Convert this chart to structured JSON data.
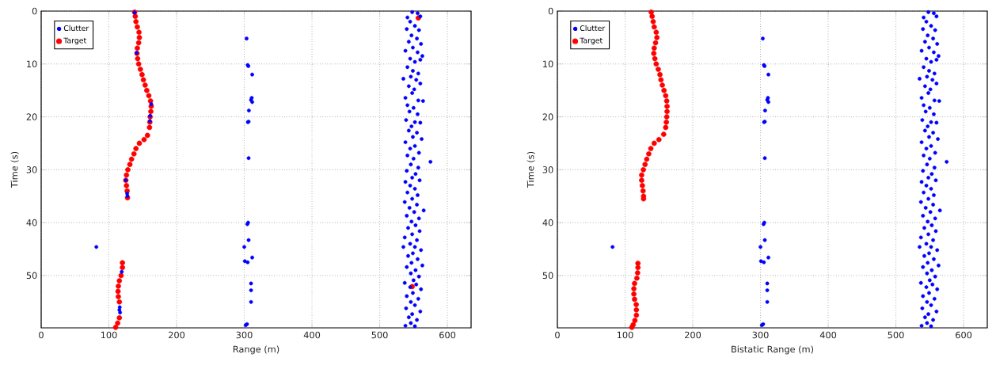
{
  "chart_data": [
    {
      "type": "scatter",
      "xlabel": "Range (m)",
      "ylabel": "Time (s)",
      "xlim": [
        0,
        635
      ],
      "ylim": [
        59.9,
        0
      ],
      "xticks": [
        0,
        100,
        200,
        300,
        400,
        500,
        600
      ],
      "yticks": [
        0,
        10,
        20,
        30,
        40,
        50
      ],
      "grid": true,
      "legend": "top left",
      "marker": "circle",
      "series": [
        {
          "name": "Clutter",
          "color": "#0000ff",
          "x": [
            81.5,
            303.4,
            305,
            306,
            311.7,
            311,
            311.7,
            310,
            306.8,
            305.3,
            306.4,
            306.4,
            305.7,
            304.5,
            306.4,
            300,
            311.7,
            300.8,
            305,
            310,
            310,
            310,
            302,
            304,
            548,
            556,
            541,
            560,
            545,
            552,
            540,
            558,
            547,
            555,
            543,
            561,
            549,
            538,
            556,
            563,
            545,
            552,
            560,
            541,
            549,
            557,
            535,
            546,
            554,
            560,
            543,
            551,
            548,
            538,
            557,
            564,
            541,
            550,
            544,
            556,
            539,
            552,
            560,
            547,
            543,
            555,
            549,
            562,
            538,
            552,
            545,
            558,
            541,
            550,
            575,
            546,
            557,
            540,
            553,
            548,
            538,
            559,
            545,
            552,
            541,
            556,
            548,
            537,
            555,
            565,
            544,
            551,
            540,
            558,
            547,
            553,
            542,
            559,
            548,
            537,
            555,
            545,
            552,
            535,
            561,
            549,
            542,
            556,
            547,
            563,
            540,
            553,
            546,
            558,
            550,
            537,
            554,
            545,
            561,
            549,
            540,
            557,
            546,
            552,
            539,
            560,
            548,
            543,
            555,
            546,
            552,
            538,
            138,
            141,
            162.6,
            161,
            160.5,
            125,
            127,
            127.5,
            119,
            116,
            116.5,
            115.5
          ],
          "values": [
            44.6,
            5.2,
            10.2,
            10.4,
            12,
            16.4,
            17.2,
            16.8,
            18.8,
            21,
            20.9,
            27.8,
            40,
            40.3,
            43.3,
            44.6,
            46.6,
            47.3,
            47.5,
            51.5,
            52.8,
            55,
            59.4,
            59.2,
            0.2,
            0.4,
            1.2,
            1.0,
            2.0,
            2.8,
            3.4,
            3.6,
            4.6,
            5.2,
            5.8,
            6.2,
            6.9,
            7.5,
            7.8,
            8.5,
            9.0,
            9.6,
            9.2,
            10.6,
            11.3,
            11.8,
            12.8,
            12.4,
            13.0,
            13.7,
            14.2,
            14.8,
            15.5,
            16.4,
            16.9,
            17.0,
            17.8,
            18.3,
            19.0,
            19.5,
            20.6,
            21.0,
            21.1,
            21.8,
            22.6,
            23.0,
            23.8,
            24.2,
            24.8,
            25.5,
            26.0,
            26.8,
            27.3,
            27.9,
            28.5,
            29.0,
            29.6,
            30.2,
            30.8,
            31.5,
            32.3,
            32.0,
            33.0,
            33.6,
            34.3,
            34.8,
            35.5,
            36.1,
            36.6,
            37.7,
            37.2,
            38.0,
            38.7,
            39.2,
            39.8,
            40.5,
            41.0,
            41.6,
            42.2,
            42.8,
            43.3,
            44.0,
            44.6,
            44.6,
            45.2,
            45.8,
            46.3,
            46.9,
            47.6,
            48.1,
            48.4,
            49.0,
            49.6,
            50.2,
            50.9,
            51.4,
            51.7,
            52.2,
            52.6,
            53.3,
            53.9,
            54.4,
            55.0,
            55.6,
            56.2,
            56.8,
            57.3,
            57.9,
            58.4,
            59.0,
            59.6,
            59.5,
            0.3,
            7.9,
            17.6,
            19.8,
            20.8,
            32,
            34.5,
            35,
            49.3,
            56,
            57,
            56.5
          ]
        },
        {
          "name": "Target",
          "color": "#ff0000",
          "x": [
            138,
            139,
            140,
            142,
            144.5,
            145,
            144,
            142,
            141.5,
            142.5,
            144,
            146.5,
            149,
            151,
            153.5,
            156,
            159,
            161.5,
            162.5,
            162,
            161,
            160.5,
            160,
            157,
            152,
            145,
            140,
            137,
            133.5,
            131,
            128,
            126,
            125,
            126,
            127,
            127.5,
            120,
            120,
            118,
            115.5,
            114,
            113.5,
            114,
            115.5,
            115.5,
            113,
            110,
            557,
            548
          ],
          "values": [
            0.2,
            1,
            2,
            3,
            4,
            5,
            6,
            7,
            8,
            9,
            10,
            11,
            12,
            13,
            14,
            15,
            16,
            17,
            18,
            19,
            20,
            21,
            22,
            23.5,
            24.3,
            25,
            26,
            27,
            28,
            29,
            30,
            31,
            32,
            33,
            34,
            35.3,
            47.6,
            48.5,
            50,
            51,
            52,
            53,
            54,
            55,
            58,
            59,
            59.8,
            1.3,
            52.1
          ]
        }
      ]
    },
    {
      "type": "scatter",
      "xlabel": "Bistatic Range (m)",
      "ylabel": "Time (s)",
      "xlim": [
        0,
        635
      ],
      "ylim": [
        59.9,
        0
      ],
      "xticks": [
        0,
        100,
        200,
        300,
        400,
        500,
        600
      ],
      "yticks": [
        0,
        10,
        20,
        30,
        40,
        50
      ],
      "grid": true,
      "legend": "top left",
      "marker": "circle",
      "series": [
        {
          "name": "Clutter",
          "color": "#0000ff",
          "x": [
            81.5,
            303.4,
            305,
            306,
            311.7,
            311,
            311.7,
            310,
            306.8,
            305.3,
            306.4,
            306.4,
            305.7,
            304.5,
            306.4,
            300,
            311.7,
            300.8,
            305,
            310,
            310,
            310,
            302,
            304,
            548,
            556,
            541,
            560,
            545,
            552,
            540,
            558,
            547,
            555,
            543,
            561,
            549,
            538,
            556,
            563,
            545,
            552,
            560,
            541,
            549,
            557,
            535,
            546,
            554,
            560,
            543,
            551,
            548,
            538,
            557,
            564,
            541,
            550,
            544,
            556,
            539,
            552,
            560,
            547,
            543,
            555,
            549,
            562,
            538,
            552,
            545,
            558,
            541,
            550,
            575,
            546,
            557,
            540,
            553,
            548,
            538,
            559,
            545,
            552,
            541,
            556,
            548,
            537,
            555,
            565,
            544,
            551,
            540,
            558,
            547,
            553,
            542,
            559,
            548,
            537,
            555,
            545,
            552,
            535,
            561,
            549,
            542,
            556,
            547,
            563,
            540,
            553,
            546,
            558,
            550,
            537,
            554,
            545,
            561,
            549,
            540,
            557,
            546,
            552,
            539,
            560,
            548,
            543,
            555,
            546,
            552,
            538
          ],
          "values": [
            44.6,
            5.2,
            10.2,
            10.4,
            12,
            16.4,
            17.2,
            16.8,
            18.8,
            21,
            20.9,
            27.8,
            40,
            40.3,
            43.3,
            44.6,
            46.6,
            47.3,
            47.5,
            51.5,
            52.8,
            55,
            59.4,
            59.2,
            0.2,
            0.4,
            1.2,
            1.0,
            2.0,
            2.8,
            3.4,
            3.6,
            4.6,
            5.2,
            5.8,
            6.2,
            6.9,
            7.5,
            7.8,
            8.5,
            9.0,
            9.6,
            9.2,
            10.6,
            11.3,
            11.8,
            12.8,
            12.4,
            13.0,
            13.7,
            14.2,
            14.8,
            15.5,
            16.4,
            16.9,
            17.0,
            17.8,
            18.3,
            19.0,
            19.5,
            20.6,
            21.0,
            21.1,
            21.8,
            22.6,
            23.0,
            23.8,
            24.2,
            24.8,
            25.5,
            26.0,
            26.8,
            27.3,
            27.9,
            28.5,
            29.0,
            29.6,
            30.2,
            30.8,
            31.5,
            32.3,
            32.0,
            33.0,
            33.6,
            34.3,
            34.8,
            35.5,
            36.1,
            36.6,
            37.7,
            37.2,
            38.0,
            38.7,
            39.2,
            39.8,
            40.5,
            41.0,
            41.6,
            42.2,
            42.8,
            43.3,
            44.0,
            44.6,
            44.6,
            45.2,
            45.8,
            46.3,
            46.9,
            47.6,
            48.1,
            48.4,
            49.0,
            49.6,
            50.2,
            50.9,
            51.4,
            51.7,
            52.2,
            52.6,
            53.3,
            53.9,
            54.4,
            55.0,
            55.6,
            56.2,
            56.8,
            57.3,
            57.9,
            58.4,
            59.0,
            59.6,
            59.5
          ]
        },
        {
          "name": "Target",
          "color": "#ff0000",
          "x": [
            138.6,
            140,
            141.5,
            143,
            146,
            147,
            145,
            143,
            142.4,
            144,
            146,
            149,
            151.5,
            153,
            155,
            157.5,
            160,
            161.5,
            162,
            162,
            161.5,
            161,
            160,
            157,
            150,
            143,
            138,
            135,
            132,
            129.5,
            127,
            124.5,
            124.5,
            125.5,
            126.5,
            127.3,
            127.3,
            119,
            119,
            118.5,
            117.4,
            114,
            113,
            113,
            114,
            116.5,
            116.7,
            116.7,
            114.5,
            112,
            110
          ],
          "values": [
            0.2,
            1,
            2,
            3,
            4,
            5,
            6,
            7,
            8,
            9,
            10,
            11,
            12,
            13,
            14,
            15,
            16,
            17,
            18,
            19,
            20,
            21,
            22,
            23.3,
            24.3,
            25,
            26,
            27,
            28,
            29,
            30,
            31,
            32,
            33,
            34,
            35,
            35.5,
            47.7,
            48.5,
            49.5,
            50.5,
            51.5,
            52.5,
            53.5,
            54.5,
            55.5,
            56.5,
            57.5,
            58.5,
            59.3,
            59.8
          ]
        }
      ]
    }
  ]
}
